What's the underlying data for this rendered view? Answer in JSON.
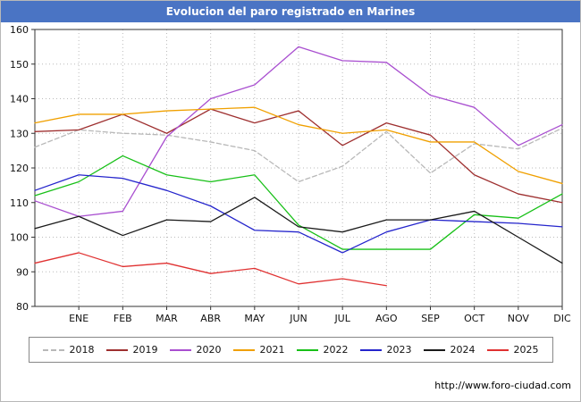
{
  "title": "Evolucion del paro registrado en Marines",
  "footer": {
    "url": "http://www.foro-ciudad.com"
  },
  "colors": {
    "titlebar": "#4a74c4",
    "grid": "#bbbbbb",
    "axis": "#333333"
  },
  "chart_data": {
    "type": "line",
    "title": "Evolucion del paro registrado en Marines",
    "x_labels": [
      "ENE",
      "FEB",
      "MAR",
      "ABR",
      "MAY",
      "JUN",
      "JUL",
      "AGO",
      "SEP",
      "OCT",
      "NOV",
      "DIC"
    ],
    "ylim": [
      80,
      160
    ],
    "ytick_step": 10,
    "grid": true,
    "legend_position": "bottom",
    "note": "First value of each series sits on the left axis edge; following values align with the month ticks ENE..DIC",
    "series": [
      {
        "name": "2018",
        "color": "#b8b8b8",
        "dash": "5,3",
        "values": [
          126,
          131,
          130,
          129.5,
          127.5,
          125,
          116,
          120.5,
          130.5,
          118.5,
          127,
          125.5,
          131.5
        ]
      },
      {
        "name": "2019",
        "color": "#9e2f2f",
        "values": [
          130.5,
          131,
          135.5,
          130,
          137,
          133,
          136.5,
          126.5,
          133,
          129.5,
          118,
          112.5,
          110
        ]
      },
      {
        "name": "2020",
        "color": "#a94fd0",
        "values": [
          110.5,
          106,
          107.5,
          129,
          140,
          144,
          155,
          151,
          150.5,
          141,
          137.5,
          126.5,
          132.5
        ]
      },
      {
        "name": "2021",
        "color": "#f0a000",
        "values": [
          133,
          135.5,
          135.5,
          136.5,
          137,
          137.5,
          132.5,
          130,
          131,
          127.5,
          127.5,
          119,
          115.5
        ]
      },
      {
        "name": "2022",
        "color": "#18c018",
        "values": [
          112,
          116,
          123.5,
          118,
          116,
          118,
          103.5,
          96.5,
          96.5,
          96.5,
          106.5,
          105.5,
          112.5
        ]
      },
      {
        "name": "2023",
        "color": "#2525cc",
        "values": [
          113.5,
          118,
          117,
          113.5,
          109,
          102,
          101.5,
          95.5,
          101.5,
          105,
          104.5,
          104,
          103
        ]
      },
      {
        "name": "2024",
        "color": "#1a1a1a",
        "values": [
          102.5,
          106,
          100.5,
          105,
          104.5,
          111.5,
          103,
          101.5,
          105,
          105,
          107.5,
          100,
          92.5
        ]
      },
      {
        "name": "2025",
        "color": "#e03131",
        "values": [
          92.5,
          95.5,
          91.5,
          92.5,
          89.5,
          91,
          86.5,
          88,
          86
        ]
      }
    ]
  }
}
